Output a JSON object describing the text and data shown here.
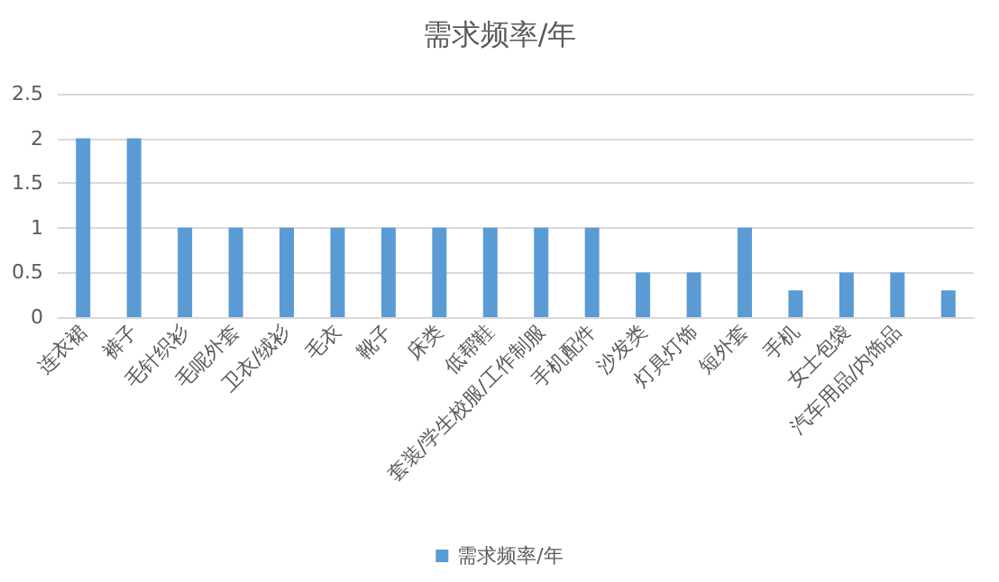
{
  "chart_data": {
    "type": "bar",
    "title": "需求频率/年",
    "categories": [
      "连衣裙",
      "裤子",
      "毛针织衫",
      "毛呢外套",
      "卫衣/绒衫",
      "毛衣",
      "靴子",
      "床类",
      "低帮鞋",
      "套装/学生校服/工作制服",
      "手机配件",
      "沙发类",
      "灯具灯饰",
      "短外套",
      "手机",
      "女士包袋",
      "汽车用品/内饰品",
      null
    ],
    "series": [
      {
        "name": "需求频率/年",
        "color": "#5b9bd5",
        "values": [
          2,
          2,
          1,
          1,
          1,
          1,
          1,
          1,
          1,
          1,
          1,
          0.5,
          0.5,
          1,
          0.3,
          0.5,
          0.5,
          0.3
        ]
      }
    ],
    "ylim": [
      0,
      2.5
    ],
    "yticks": [
      0,
      0.5,
      1,
      1.5,
      2,
      2.5
    ],
    "grid": "y",
    "legend": "bottom"
  }
}
